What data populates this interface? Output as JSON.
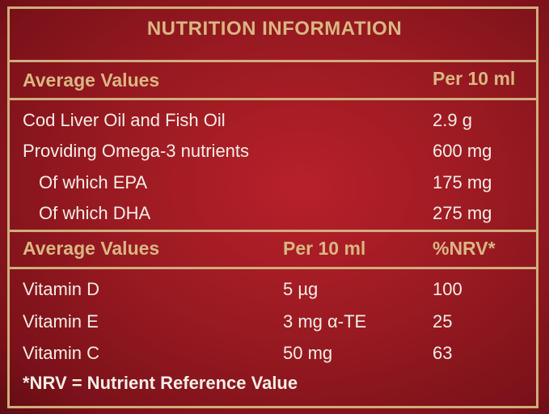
{
  "title": "NUTRITION INFORMATION",
  "section1": {
    "header_left": "Average Values",
    "header_right": "Per 10 ml",
    "rows": [
      {
        "label": "Cod Liver Oil and Fish Oil",
        "value": "2.9 g"
      },
      {
        "label": "Providing Omega-3 nutrients",
        "value": "600 mg"
      },
      {
        "label": "Of which EPA",
        "value": "175 mg"
      },
      {
        "label": "Of which DHA",
        "value": "275 mg"
      }
    ]
  },
  "section2": {
    "header_left": "Average Values",
    "header_mid": "Per 10 ml",
    "header_right": "%NRV*",
    "rows": [
      {
        "label": "Vitamin D",
        "amount": "5 µg",
        "nrv": "100"
      },
      {
        "label": "Vitamin E",
        "amount": "3 mg α-TE",
        "nrv": "25"
      },
      {
        "label": "Vitamin C",
        "amount": "50 mg",
        "nrv": "63"
      }
    ]
  },
  "footnote": "*NRV = Nutrient Reference Value"
}
